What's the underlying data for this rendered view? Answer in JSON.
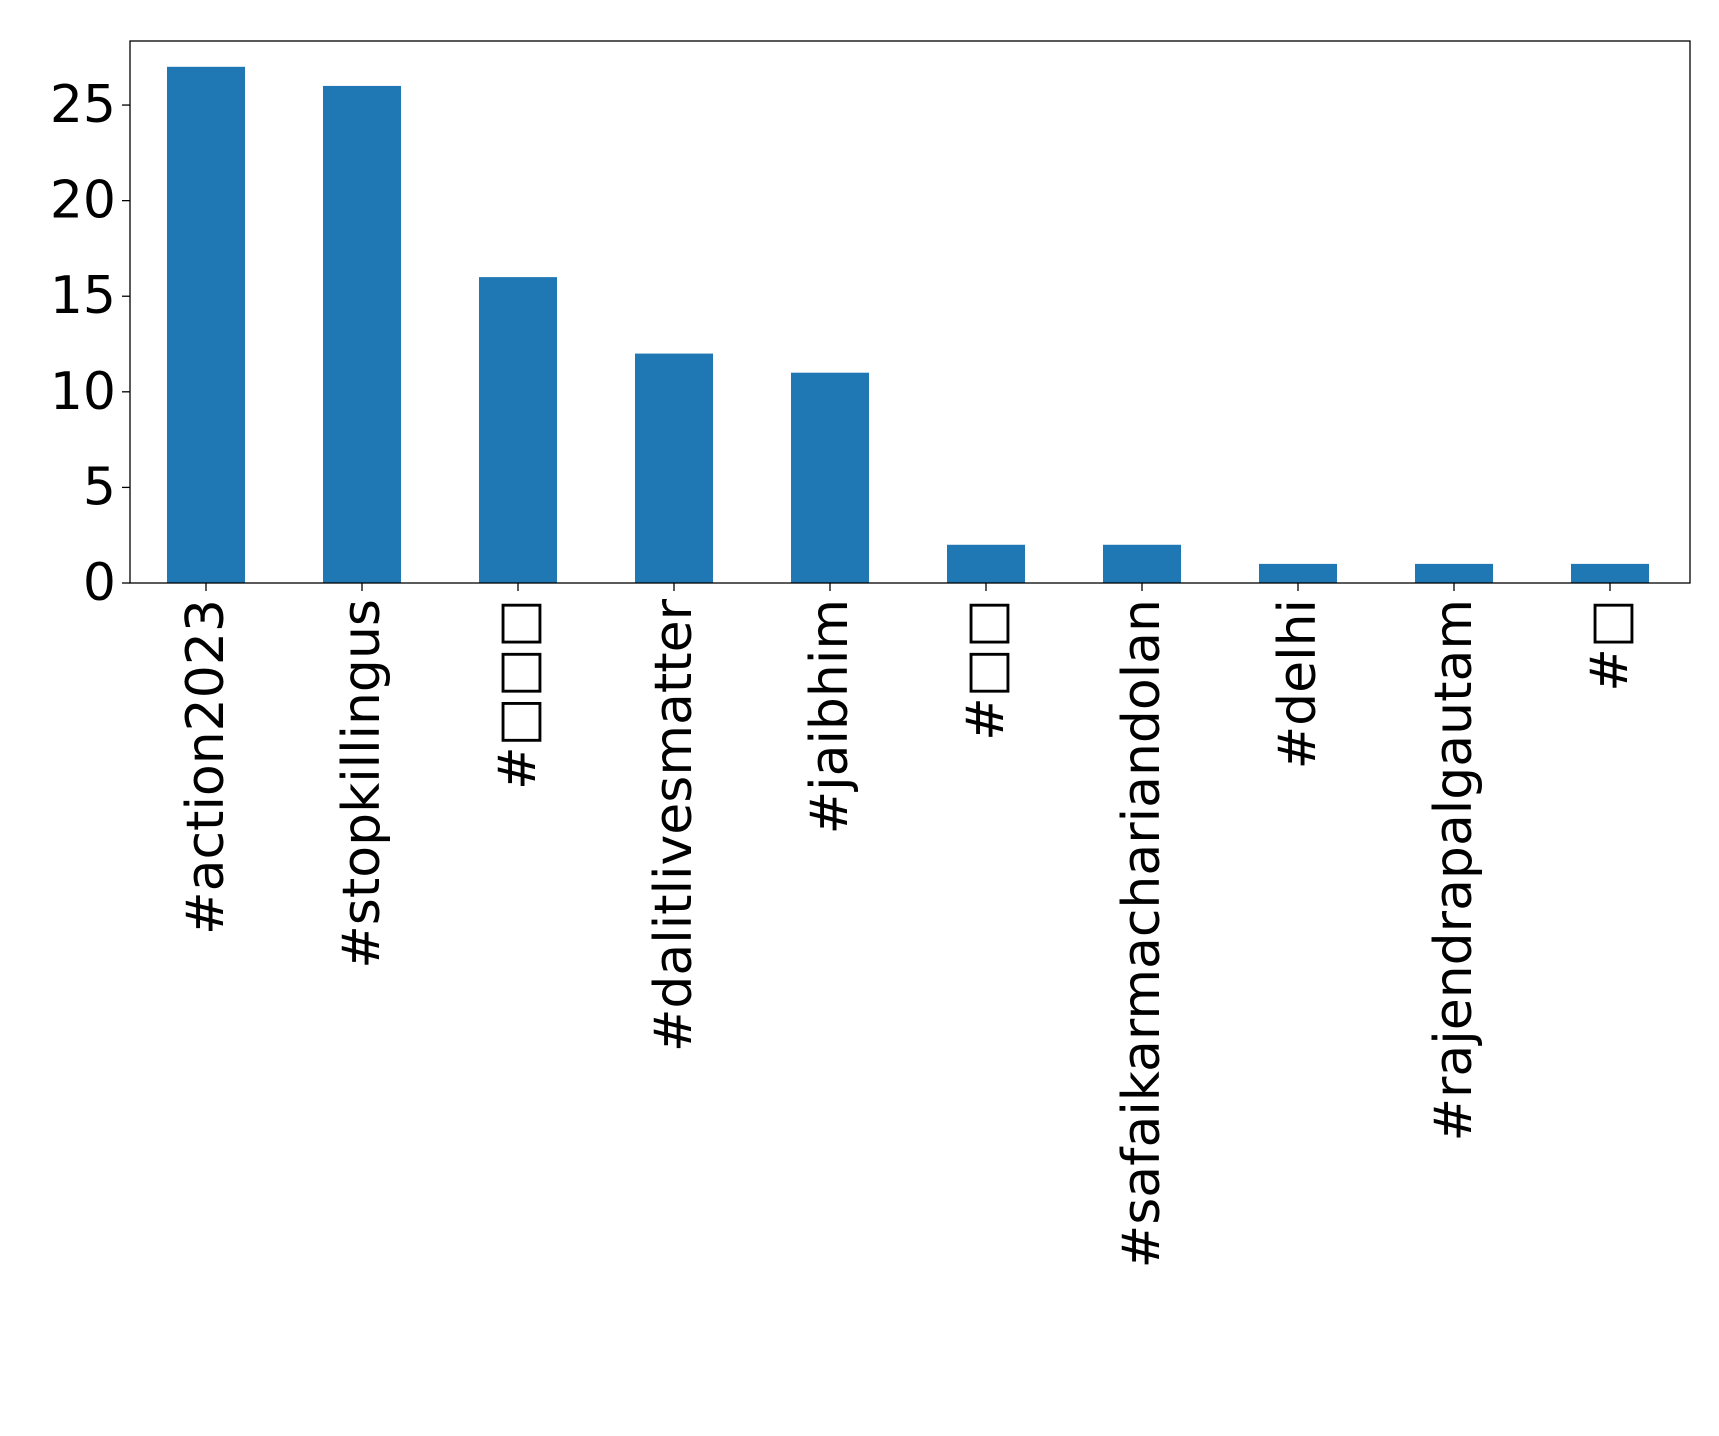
{
  "chart_data": {
    "type": "bar",
    "title": "",
    "xlabel": "",
    "ylabel": "",
    "categories": [
      "#action2023",
      "#stopkillingus",
      "#□□□",
      "#dalitlivesmatter",
      "#jaibhim",
      "#□□",
      "#safaikarmachariandolan",
      "#delhi",
      "#rajendrapalgautam",
      "#□"
    ],
    "series": [
      {
        "values": [
          27,
          26,
          16,
          12,
          11,
          2,
          2,
          1,
          1,
          1
        ]
      }
    ],
    "ylim": [
      0,
      28.35
    ],
    "yticks": [
      0,
      5,
      10,
      15,
      20,
      25
    ],
    "grid": false,
    "legend": "none",
    "bar_color": "#1f77b4"
  }
}
